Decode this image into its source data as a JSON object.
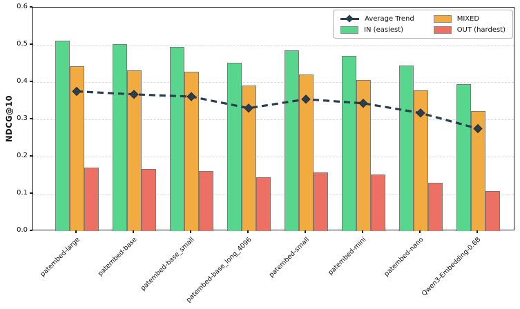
{
  "chart_data": {
    "type": "bar",
    "title": "",
    "xlabel": "",
    "ylabel": "NDCG@10",
    "ylim": [
      0,
      0.6
    ],
    "yticks": [
      0.0,
      0.1,
      0.2,
      0.3,
      0.4,
      0.5,
      0.6
    ],
    "ytick_labels": [
      "0.0",
      "0.1",
      "0.2",
      "0.3",
      "0.4",
      "0.5",
      "0.6"
    ],
    "grid": "horizontal dashed",
    "legend_position": "upper right",
    "categories": [
      "patembed-large",
      "patembed-base",
      "patembed-base_small",
      "patembed-base_long_4096",
      "patembed-small",
      "patembed-mini",
      "patembed-nano",
      "Qwen3-Embedding-0.6B"
    ],
    "series": [
      {
        "name": "IN (easiest)",
        "type": "bar",
        "color": "#58d68d",
        "edge_color": "#7a7a7a",
        "values": [
          0.511,
          0.501,
          0.494,
          0.452,
          0.485,
          0.471,
          0.444,
          0.394
        ]
      },
      {
        "name": "MIXED",
        "type": "bar",
        "color": "#f2ab40",
        "edge_color": "#7a7a7a",
        "values": [
          0.442,
          0.432,
          0.427,
          0.39,
          0.42,
          0.406,
          0.377,
          0.323
        ]
      },
      {
        "name": "OUT (hardest)",
        "type": "bar",
        "color": "#ec7063",
        "edge_color": "#7a7a7a",
        "values": [
          0.171,
          0.167,
          0.162,
          0.145,
          0.158,
          0.151,
          0.129,
          0.108
        ]
      },
      {
        "name": "Average Trend",
        "type": "line",
        "color": "#2b3e50",
        "style": "dashed",
        "marker": "diamond",
        "values": [
          0.375,
          0.367,
          0.361,
          0.33,
          0.354,
          0.343,
          0.317,
          0.275
        ]
      }
    ],
    "legend": [
      {
        "label": "Average Trend",
        "swatch": "line-diamond",
        "color": "#2b3e50"
      },
      {
        "label": "IN (easiest)",
        "swatch": "patch",
        "color": "#58d68d"
      },
      {
        "label": "MIXED",
        "swatch": "patch",
        "color": "#f2ab40"
      },
      {
        "label": "OUT (hardest)",
        "swatch": "patch",
        "color": "#ec7063"
      }
    ],
    "colors": {
      "trend_line": "#2b3e50",
      "grid": "#d9dcdf",
      "axis": "#1a1a1a"
    }
  }
}
